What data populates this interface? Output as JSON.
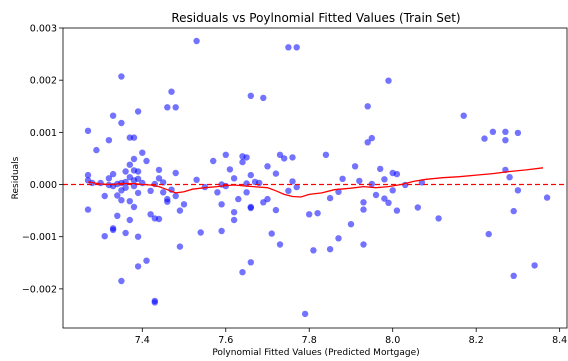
{
  "chart_data": {
    "type": "scatter",
    "title": "Residuals vs Poylnomial Fitted Values (Train Set)",
    "xlabel": "Polynomial Fitted Values (Predicted Mortgage)",
    "ylabel": "Residuals",
    "xlim": [
      7.21,
      8.42
    ],
    "ylim": [
      -0.00275,
      0.003
    ],
    "x_ticks": [
      7.4,
      7.6,
      7.8,
      8.0,
      8.2,
      8.4
    ],
    "x_tick_labels": [
      "7.4",
      "7.6",
      "7.8",
      "8.0",
      "8.2",
      "8.4"
    ],
    "y_ticks": [
      -0.002,
      -0.001,
      0.0,
      0.001,
      0.002,
      0.003
    ],
    "y_tick_labels": [
      "−0.002",
      "−0.001",
      "0.000",
      "0.001",
      "0.002",
      "0.003"
    ],
    "grid": false,
    "legend": "none",
    "colors": {
      "points": "#0000ff",
      "trend": "#ff0000",
      "zero_line": "#ff0000"
    },
    "points": [
      [
        7.27,
        0.00103
      ],
      [
        7.27,
        0.00018
      ],
      [
        7.27,
        8e-05
      ],
      [
        7.27,
        -0.00048
      ],
      [
        7.28,
        3e-05
      ],
      [
        7.29,
        0.00066
      ],
      [
        7.3,
        3e-05
      ],
      [
        7.31,
        -0.00022
      ],
      [
        7.31,
        -0.00099
      ],
      [
        7.32,
        -1e-05
      ],
      [
        7.32,
        0.00085
      ],
      [
        7.32,
        0.00012
      ],
      [
        7.33,
        0.00132
      ],
      [
        7.33,
        0.0002
      ],
      [
        7.33,
        -0.00084
      ],
      [
        7.33,
        -0.00087
      ],
      [
        7.33,
        -3e-05
      ],
      [
        7.34,
        -0.0006
      ],
      [
        7.34,
        1e-05
      ],
      [
        7.34,
        -0.00021
      ],
      [
        7.35,
        0.00207
      ],
      [
        7.35,
        0.00118
      ],
      [
        7.35,
        3e-05
      ],
      [
        7.35,
        -0.00011
      ],
      [
        7.35,
        -0.0003
      ],
      [
        7.35,
        -0.00185
      ],
      [
        7.36,
        0.00025
      ],
      [
        7.36,
        5e-05
      ],
      [
        7.36,
        -6e-05
      ],
      [
        7.36,
        -0.00093
      ],
      [
        7.37,
        0.0009
      ],
      [
        7.37,
        0.00038
      ],
      [
        7.37,
        0.00014
      ],
      [
        7.37,
        -0.00032
      ],
      [
        7.37,
        -0.00068
      ],
      [
        7.38,
        0.0009
      ],
      [
        7.38,
        0.00049
      ],
      [
        7.38,
        0.00027
      ],
      [
        7.38,
        8e-05
      ],
      [
        7.38,
        -3e-05
      ],
      [
        7.38,
        -0.00043
      ],
      [
        7.39,
        0.0014
      ],
      [
        7.39,
        0.00025
      ],
      [
        7.39,
        0.00011
      ],
      [
        7.39,
        -0.00016
      ],
      [
        7.39,
        -0.001
      ],
      [
        7.39,
        -0.00157
      ],
      [
        7.4,
        0.00061
      ],
      [
        7.4,
        3e-05
      ],
      [
        7.41,
        0.00045
      ],
      [
        7.41,
        -0.00146
      ],
      [
        7.42,
        -0.00057
      ],
      [
        7.42,
        -0.00012
      ],
      [
        7.43,
        1e-05
      ],
      [
        7.43,
        -0.00065
      ],
      [
        7.43,
        -0.00223
      ],
      [
        7.43,
        -0.00226
      ],
      [
        7.44,
        0.00028
      ],
      [
        7.44,
        0.00012
      ],
      [
        7.44,
        -0.00066
      ],
      [
        7.45,
        4e-05
      ],
      [
        7.45,
        -0.00015
      ],
      [
        7.46,
        0.00148
      ],
      [
        7.46,
        -0.00033
      ],
      [
        7.46,
        -0.00028
      ],
      [
        7.47,
        0.00178
      ],
      [
        7.47,
        -0.0001
      ],
      [
        7.48,
        0.00148
      ],
      [
        7.48,
        0.00022
      ],
      [
        7.48,
        -0.00022
      ],
      [
        7.49,
        -0.0005
      ],
      [
        7.49,
        -0.00119
      ],
      [
        7.5,
        -0.00038
      ],
      [
        7.53,
        0.00275
      ],
      [
        7.53,
        9e-05
      ],
      [
        7.54,
        -0.00092
      ],
      [
        7.55,
        -5e-05
      ],
      [
        7.57,
        0.00045
      ],
      [
        7.58,
        -0.00015
      ],
      [
        7.59,
        -0.00038
      ],
      [
        7.59,
        -0.00089
      ],
      [
        7.59,
        0.0
      ],
      [
        7.6,
        0.00057
      ],
      [
        7.6,
        -3e-05
      ],
      [
        7.61,
        0.00029
      ],
      [
        7.62,
        0.00012
      ],
      [
        7.62,
        -0.00053
      ],
      [
        7.62,
        -0.00068
      ],
      [
        7.63,
        -0.00028
      ],
      [
        7.64,
        0.00054
      ],
      [
        7.64,
        0.00043
      ],
      [
        7.64,
        -0.00168
      ],
      [
        7.65,
        0.00052
      ],
      [
        7.65,
        2e-05
      ],
      [
        7.65,
        -0.00015
      ],
      [
        7.66,
        0.0017
      ],
      [
        7.66,
        0.00018
      ],
      [
        7.66,
        -0.00043
      ],
      [
        7.66,
        -0.00045
      ],
      [
        7.66,
        -0.00149
      ],
      [
        7.67,
        5e-05
      ],
      [
        7.68,
        3e-05
      ],
      [
        7.69,
        0.00166
      ],
      [
        7.69,
        -0.00034
      ],
      [
        7.7,
        0.00035
      ],
      [
        7.7,
        -0.00028
      ],
      [
        7.71,
        -0.00094
      ],
      [
        7.72,
        -0.00049
      ],
      [
        7.72,
        0.00021
      ],
      [
        7.73,
        0.00057
      ],
      [
        7.73,
        -0.00115
      ],
      [
        7.74,
        0.0005
      ],
      [
        7.75,
        0.00263
      ],
      [
        7.75,
        -0.00012
      ],
      [
        7.76,
        0.00052
      ],
      [
        7.76,
        6e-05
      ],
      [
        7.77,
        0.00263
      ],
      [
        7.77,
        -5e-05
      ],
      [
        7.79,
        -0.00248
      ],
      [
        7.8,
        -0.00057
      ],
      [
        7.81,
        -0.00126
      ],
      [
        7.82,
        -0.00055
      ],
      [
        7.84,
        0.00057
      ],
      [
        7.85,
        -0.00026
      ],
      [
        7.85,
        -0.00124
      ],
      [
        7.87,
        -0.00103
      ],
      [
        7.87,
        -0.00014
      ],
      [
        7.88,
        0.00011
      ],
      [
        7.9,
        -0.00076
      ],
      [
        7.91,
        0.00035
      ],
      [
        7.92,
        7e-05
      ],
      [
        7.93,
        -0.00034
      ],
      [
        7.93,
        -0.00115
      ],
      [
        7.93,
        -0.00048
      ],
      [
        7.94,
        0.0015
      ],
      [
        7.94,
        0.00081
      ],
      [
        7.95,
        0.00089
      ],
      [
        7.95,
        1e-05
      ],
      [
        7.96,
        -0.0002
      ],
      [
        7.97,
        0.0003
      ],
      [
        7.98,
        0.0001
      ],
      [
        7.98,
        -0.00027
      ],
      [
        7.99,
        0.00199
      ],
      [
        7.99,
        -0.00035
      ],
      [
        8.0,
        0.00022
      ],
      [
        8.0,
        -0.00011
      ],
      [
        8.01,
        -0.0005
      ],
      [
        8.01,
        0.0002
      ],
      [
        8.03,
        -1e-05
      ],
      [
        8.06,
        -0.00044
      ],
      [
        8.07,
        4e-05
      ],
      [
        8.11,
        -0.00065
      ],
      [
        8.17,
        0.00132
      ],
      [
        8.22,
        0.00088
      ],
      [
        8.23,
        -0.00095
      ],
      [
        8.24,
        0.00101
      ],
      [
        8.27,
        0.00101
      ],
      [
        8.27,
        0.00085
      ],
      [
        8.27,
        0.00028
      ],
      [
        8.28,
        0.00014
      ],
      [
        8.29,
        -0.00175
      ],
      [
        8.29,
        -0.00051
      ],
      [
        8.3,
        0.00099
      ],
      [
        8.3,
        -0.00011
      ],
      [
        8.34,
        -0.00155
      ],
      [
        8.37,
        -0.00025
      ]
    ],
    "trend_line": [
      [
        7.27,
        5e-05
      ],
      [
        7.3,
        1e-05
      ],
      [
        7.33,
        0.0
      ],
      [
        7.35,
        2e-05
      ],
      [
        7.38,
        2e-05
      ],
      [
        7.4,
        0.0
      ],
      [
        7.42,
        -1e-05
      ],
      [
        7.44,
        -4e-05
      ],
      [
        7.46,
        -0.0001
      ],
      [
        7.48,
        -0.00016
      ],
      [
        7.5,
        -0.00014
      ],
      [
        7.52,
        -9e-05
      ],
      [
        7.55,
        -6e-05
      ],
      [
        7.58,
        -4e-05
      ],
      [
        7.6,
        -2e-05
      ],
      [
        7.62,
        -1e-05
      ],
      [
        7.65,
        -3e-05
      ],
      [
        7.68,
        -5e-05
      ],
      [
        7.7,
        -6e-05
      ],
      [
        7.72,
        -0.00012
      ],
      [
        7.74,
        -0.00019
      ],
      [
        7.76,
        -0.00023
      ],
      [
        7.78,
        -0.00024
      ],
      [
        7.8,
        -0.00019
      ],
      [
        7.83,
        -0.00016
      ],
      [
        7.86,
        -0.0001
      ],
      [
        7.9,
        -7e-05
      ],
      [
        7.93,
        -4e-05
      ],
      [
        7.96,
        -6e-05
      ],
      [
        7.99,
        -4e-05
      ],
      [
        8.02,
        0.0
      ],
      [
        8.05,
        6e-05
      ],
      [
        8.08,
        0.0001
      ],
      [
        8.12,
        0.00013
      ],
      [
        8.16,
        0.00015
      ],
      [
        8.2,
        0.00018
      ],
      [
        8.24,
        0.00021
      ],
      [
        8.28,
        0.00025
      ],
      [
        8.32,
        0.00028
      ],
      [
        8.36,
        0.00032
      ]
    ],
    "reference_line": 0.0
  }
}
